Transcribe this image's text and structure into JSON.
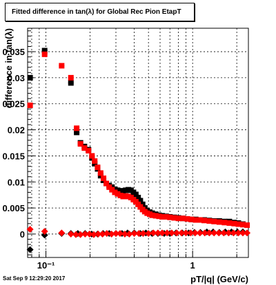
{
  "title": "Fitted difference in tan(λ) for Global Rec Pion EtapT",
  "timestamp": "Sat Sep  9 12:29:20 2017",
  "colors": {
    "series_black": "#000000",
    "series_red": "#ff0000",
    "axes": "#000000",
    "background": "#ffffff"
  },
  "chart_data": {
    "type": "scatter",
    "title": "Fitted difference in tan(λ) for Global Rec Pion EtapT",
    "xlabel": "pT/|q| (GeV/c)",
    "ylabel": "difference in tan(λ)",
    "xscale": "log",
    "xlim": [
      0.075,
      2.4
    ],
    "ylim": [
      -0.0045,
      0.0395
    ],
    "grid": true,
    "legend": "none",
    "x_ticks": [
      {
        "value": 0.1,
        "label": "10⁻¹"
      },
      {
        "value": 1,
        "label": "1"
      }
    ],
    "y_ticks": [
      {
        "value": 0,
        "label": "0"
      },
      {
        "value": 0.005,
        "label": "0.005"
      },
      {
        "value": 0.01,
        "label": "0.01"
      },
      {
        "value": 0.015,
        "label": "0.015"
      },
      {
        "value": 0.02,
        "label": "0.02"
      },
      {
        "value": 0.025,
        "label": "0.025"
      },
      {
        "value": 0.03,
        "label": "0.03"
      },
      {
        "value": 0.035,
        "label": "0.035"
      }
    ],
    "series": [
      {
        "marker": "square",
        "color": "#000000",
        "points": [
          [
            0.078,
            0.03
          ],
          [
            0.098,
            0.0352
          ],
          [
            0.148,
            0.029
          ],
          [
            0.162,
            0.0195
          ],
          [
            0.172,
            0.0175
          ],
          [
            0.183,
            0.0168
          ],
          [
            0.195,
            0.0162
          ],
          [
            0.206,
            0.0146
          ],
          [
            0.215,
            0.0135
          ],
          [
            0.225,
            0.0125
          ],
          [
            0.236,
            0.0112
          ],
          [
            0.247,
            0.0103
          ],
          [
            0.258,
            0.0097
          ],
          [
            0.27,
            0.0093
          ],
          [
            0.282,
            0.009
          ],
          [
            0.295,
            0.0086
          ],
          [
            0.308,
            0.0084
          ],
          [
            0.322,
            0.0083
          ],
          [
            0.336,
            0.0082
          ],
          [
            0.35,
            0.0084
          ],
          [
            0.365,
            0.0085
          ],
          [
            0.38,
            0.0084
          ],
          [
            0.395,
            0.008
          ],
          [
            0.41,
            0.0076
          ],
          [
            0.425,
            0.007
          ],
          [
            0.44,
            0.0064
          ],
          [
            0.456,
            0.0057
          ],
          [
            0.472,
            0.005
          ],
          [
            0.49,
            0.0045
          ],
          [
            0.51,
            0.0042
          ],
          [
            0.53,
            0.004
          ],
          [
            0.56,
            0.0038
          ],
          [
            0.59,
            0.0036
          ],
          [
            0.62,
            0.0035
          ],
          [
            0.66,
            0.0034
          ],
          [
            0.7,
            0.0033
          ],
          [
            0.75,
            0.0032
          ],
          [
            0.8,
            0.0031
          ],
          [
            0.86,
            0.003
          ],
          [
            0.92,
            0.0029
          ],
          [
            0.98,
            0.0028
          ],
          [
            1.05,
            0.0028
          ],
          [
            1.12,
            0.0027
          ],
          [
            1.2,
            0.0027
          ],
          [
            1.3,
            0.0026
          ],
          [
            1.4,
            0.0025
          ],
          [
            1.52,
            0.0025
          ],
          [
            1.65,
            0.0024
          ],
          [
            1.78,
            0.0024
          ],
          [
            1.92,
            0.0022
          ],
          [
            2.05,
            0.0021
          ],
          [
            2.2,
            0.0019
          ]
        ]
      },
      {
        "marker": "square",
        "color": "#ff0000",
        "points": [
          [
            0.078,
            0.0247
          ],
          [
            0.098,
            0.0345
          ],
          [
            0.128,
            0.0323
          ],
          [
            0.148,
            0.03
          ],
          [
            0.162,
            0.0203
          ],
          [
            0.172,
            0.0173
          ],
          [
            0.183,
            0.0165
          ],
          [
            0.195,
            0.016
          ],
          [
            0.206,
            0.015
          ],
          [
            0.215,
            0.014
          ],
          [
            0.225,
            0.0128
          ],
          [
            0.236,
            0.0117
          ],
          [
            0.247,
            0.0107
          ],
          [
            0.258,
            0.0097
          ],
          [
            0.27,
            0.009
          ],
          [
            0.282,
            0.0085
          ],
          [
            0.295,
            0.008
          ],
          [
            0.308,
            0.0077
          ],
          [
            0.322,
            0.0074
          ],
          [
            0.336,
            0.0072
          ],
          [
            0.35,
            0.0073
          ],
          [
            0.365,
            0.0072
          ],
          [
            0.38,
            0.007
          ],
          [
            0.395,
            0.0066
          ],
          [
            0.41,
            0.0062
          ],
          [
            0.425,
            0.0057
          ],
          [
            0.44,
            0.0052
          ],
          [
            0.456,
            0.0047
          ],
          [
            0.472,
            0.0043
          ],
          [
            0.49,
            0.004
          ],
          [
            0.51,
            0.0038
          ],
          [
            0.53,
            0.0036
          ],
          [
            0.56,
            0.0035
          ],
          [
            0.59,
            0.0034
          ],
          [
            0.62,
            0.0033
          ],
          [
            0.66,
            0.0033
          ],
          [
            0.7,
            0.0032
          ],
          [
            0.75,
            0.0031
          ],
          [
            0.8,
            0.003
          ],
          [
            0.86,
            0.003
          ],
          [
            0.92,
            0.0029
          ],
          [
            0.98,
            0.0028
          ],
          [
            1.05,
            0.0027
          ],
          [
            1.12,
            0.0027
          ],
          [
            1.2,
            0.0026
          ],
          [
            1.3,
            0.0025
          ],
          [
            1.4,
            0.0024
          ],
          [
            1.52,
            0.0023
          ],
          [
            1.65,
            0.0022
          ],
          [
            1.78,
            0.0021
          ],
          [
            1.92,
            0.002
          ],
          [
            2.05,
            0.0019
          ],
          [
            2.2,
            0.0018
          ],
          [
            2.35,
            0.0017
          ]
        ]
      },
      {
        "marker": "diamond",
        "color": "#000000",
        "points": [
          [
            0.078,
            -0.003
          ],
          [
            0.098,
            -0.0002
          ],
          [
            0.128,
            0.0001
          ],
          [
            0.148,
            0.0001
          ],
          [
            0.165,
            0.0001
          ],
          [
            0.185,
            0.0001
          ],
          [
            0.205,
            0.0
          ],
          [
            0.225,
            0.0
          ],
          [
            0.245,
            0.0001
          ],
          [
            0.27,
            0.0001
          ],
          [
            0.3,
            0.0001
          ],
          [
            0.33,
            0.0001
          ],
          [
            0.36,
            0.0002
          ],
          [
            0.4,
            0.0002
          ],
          [
            0.44,
            0.0001
          ],
          [
            0.48,
            0.0002
          ],
          [
            0.53,
            0.0001
          ],
          [
            0.58,
            0.0001
          ],
          [
            0.64,
            0.0001
          ],
          [
            0.7,
            0.0001
          ],
          [
            0.77,
            0.0002
          ],
          [
            0.85,
            0.0002
          ],
          [
            0.94,
            0.0002
          ],
          [
            1.03,
            0.0003
          ],
          [
            1.13,
            0.0003
          ],
          [
            1.25,
            0.0004
          ],
          [
            1.38,
            0.0004
          ],
          [
            1.52,
            0.0003
          ],
          [
            1.67,
            0.0004
          ],
          [
            1.84,
            0.0004
          ],
          [
            2.02,
            0.0004
          ],
          [
            2.2,
            0.0004
          ]
        ]
      },
      {
        "marker": "diamond",
        "color": "#ff0000",
        "points": [
          [
            0.078,
            0.0009
          ],
          [
            0.098,
            0.0005
          ],
          [
            0.128,
            0.0002
          ],
          [
            0.148,
            0.0
          ],
          [
            0.16,
            -0.0001
          ],
          [
            0.172,
            -0.0001
          ],
          [
            0.185,
            0.0
          ],
          [
            0.198,
            0.0
          ],
          [
            0.212,
            -0.0001
          ],
          [
            0.227,
            0.0
          ],
          [
            0.243,
            0.0
          ],
          [
            0.26,
            0.0001
          ],
          [
            0.28,
            0.0
          ],
          [
            0.3,
            0.0001
          ],
          [
            0.32,
            0.0001
          ],
          [
            0.345,
            0.0
          ],
          [
            0.37,
            0.0
          ],
          [
            0.4,
            0.0001
          ],
          [
            0.43,
            0.0001
          ],
          [
            0.46,
            0.0001
          ],
          [
            0.5,
            0.0001
          ],
          [
            0.54,
            0.0002
          ],
          [
            0.58,
            0.0002
          ],
          [
            0.62,
            0.0002
          ],
          [
            0.67,
            0.0002
          ],
          [
            0.72,
            0.0002
          ],
          [
            0.78,
            0.0002
          ],
          [
            0.84,
            0.0002
          ],
          [
            0.9,
            0.0002
          ],
          [
            0.97,
            0.0002
          ],
          [
            1.04,
            0.0002
          ],
          [
            1.12,
            0.0002
          ],
          [
            1.21,
            0.0002
          ],
          [
            1.3,
            0.0002
          ],
          [
            1.4,
            0.0002
          ],
          [
            1.51,
            0.0002
          ],
          [
            1.63,
            0.0002
          ],
          [
            1.76,
            0.0002
          ],
          [
            1.9,
            0.0002
          ],
          [
            2.05,
            0.0002
          ],
          [
            2.2,
            0.0002
          ],
          [
            2.35,
            0.0002
          ]
        ]
      }
    ]
  }
}
